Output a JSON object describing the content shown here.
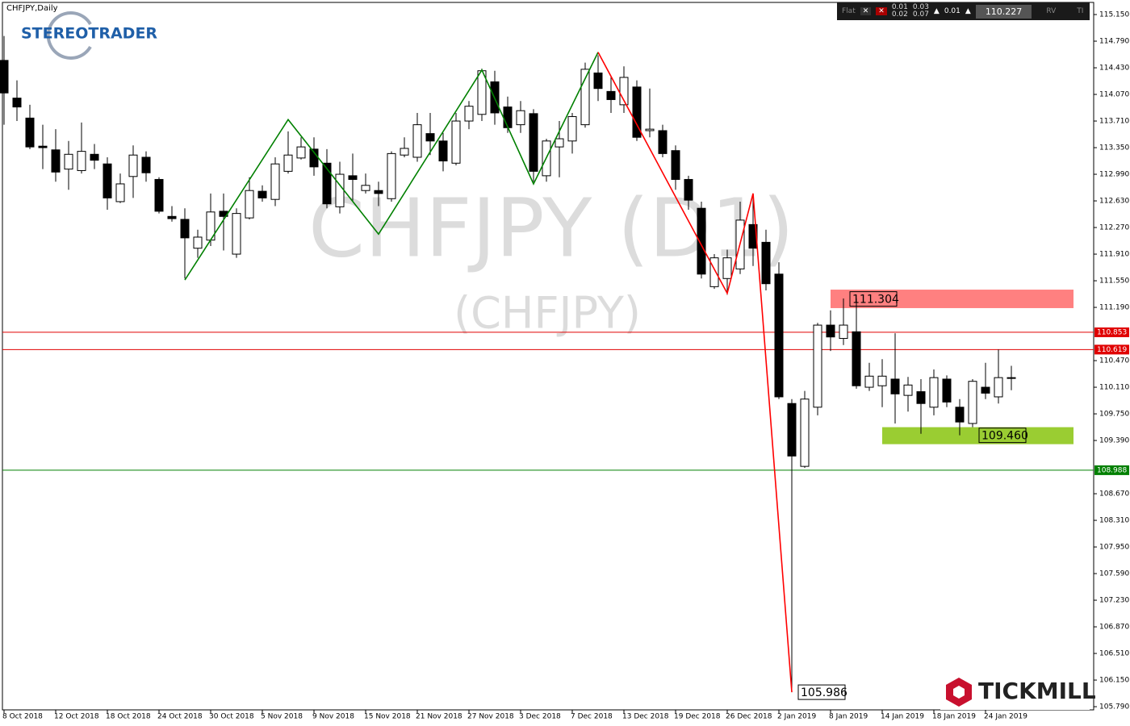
{
  "chart_data": {
    "type": "candlestick",
    "title": "CHFJPY,Daily",
    "watermark": "CHFJPY (D1)",
    "watermark_sub": "(CHFJPY)",
    "categories": [
      "8 Oct 2018",
      null,
      null,
      null,
      "12 Oct 2018",
      null,
      null,
      null,
      "18 Oct 2018",
      null,
      null,
      null,
      "24 Oct 2018",
      null,
      null,
      null,
      "30 Oct 2018",
      null,
      null,
      null,
      "5 Nov 2018",
      null,
      null,
      null,
      "9 Nov 2018",
      null,
      null,
      null,
      "15 Nov 2018",
      null,
      null,
      null,
      "21 Nov 2018",
      null,
      null,
      null,
      "27 Nov 2018",
      null,
      null,
      null,
      "3 Dec 2018",
      null,
      null,
      null,
      "7 Dec 2018",
      null,
      null,
      null,
      "13 Dec 2018",
      null,
      null,
      null,
      "19 Dec 2018",
      null,
      null,
      null,
      "26 Dec 2018",
      null,
      null,
      null,
      "2 Jan 2019",
      null,
      null,
      null,
      "8 Jan 2019",
      null,
      null,
      null,
      "14 Jan 2019",
      null,
      null,
      null,
      "18 Jan 2019",
      null,
      null,
      null,
      "24 Jan 2019",
      null,
      null
    ],
    "open": [
      114.53,
      114.02,
      113.75,
      113.37,
      113.32,
      113.06,
      113.04,
      113.26,
      113.13,
      112.62,
      112.96,
      113.22,
      112.92,
      112.42,
      112.38,
      111.99,
      112.1,
      112.49,
      111.91,
      112.4,
      112.76,
      112.65,
      113.03,
      113.21,
      113.33,
      113.14,
      112.55,
      112.97,
      112.77,
      112.77,
      112.66,
      113.25,
      113.22,
      113.54,
      113.44,
      113.14,
      113.71,
      113.8,
      114.24,
      113.9,
      113.66,
      113.81,
      112.97,
      113.36,
      113.44,
      113.66,
      114.36,
      114.11,
      113.93,
      114.17,
      113.58,
      113.58,
      113.31,
      112.92,
      112.53,
      111.47,
      111.58,
      111.71,
      112.31,
      112.07,
      111.64,
      109.89,
      109.04,
      109.84,
      110.95,
      110.77,
      110.86,
      110.11,
      110.13,
      110.22,
      110.0,
      110.05,
      109.84,
      110.22,
      109.84,
      109.62,
      110.11,
      109.98,
      110.24
    ],
    "high": [
      114.86,
      114.26,
      113.93,
      113.66,
      113.6,
      113.44,
      113.69,
      113.4,
      113.22,
      113.0,
      113.38,
      113.3,
      112.95,
      112.56,
      112.53,
      112.24,
      112.73,
      112.73,
      112.53,
      112.95,
      112.84,
      113.22,
      113.57,
      113.49,
      113.49,
      113.33,
      113.16,
      113.27,
      113.0,
      112.89,
      113.3,
      113.49,
      113.82,
      113.82,
      113.55,
      113.82,
      113.98,
      114.42,
      114.39,
      114.04,
      113.98,
      113.87,
      113.47,
      113.71,
      113.82,
      114.5,
      114.6,
      114.31,
      114.45,
      114.26,
      114.15,
      113.66,
      113.38,
      112.97,
      112.62,
      111.91,
      111.97,
      112.62,
      112.73,
      112.24,
      111.8,
      109.95,
      110.06,
      110.98,
      111.15,
      111.31,
      111.31,
      110.44,
      110.49,
      110.84,
      110.25,
      110.22,
      110.35,
      110.27,
      109.95,
      110.22,
      110.44,
      110.62,
      110.4
    ],
    "low": [
      113.66,
      113.71,
      113.33,
      113.06,
      112.89,
      112.78,
      113.0,
      113.06,
      112.51,
      112.6,
      112.67,
      112.89,
      112.46,
      112.35,
      111.58,
      111.86,
      112.02,
      111.96,
      111.86,
      112.38,
      112.62,
      112.56,
      113.0,
      113.19,
      112.97,
      112.53,
      112.46,
      112.62,
      112.73,
      112.56,
      112.62,
      113.22,
      113.16,
      113.25,
      113.03,
      113.11,
      113.6,
      113.71,
      113.66,
      113.55,
      113.55,
      112.89,
      112.89,
      112.95,
      113.27,
      113.62,
      113.98,
      113.82,
      113.82,
      113.44,
      113.49,
      113.22,
      112.78,
      112.51,
      111.58,
      111.44,
      111.36,
      111.64,
      111.75,
      111.42,
      109.95,
      105.986,
      109.02,
      109.73,
      110.6,
      110.68,
      110.09,
      110.06,
      109.84,
      109.62,
      109.78,
      109.48,
      109.73,
      109.84,
      109.46,
      109.57,
      109.95,
      109.89,
      110.07
    ],
    "close": [
      114.09,
      113.9,
      113.36,
      113.35,
      113.02,
      113.26,
      113.3,
      113.18,
      112.67,
      112.86,
      113.25,
      113.01,
      112.49,
      112.39,
      112.13,
      112.14,
      112.48,
      112.42,
      112.46,
      112.77,
      112.67,
      113.13,
      113.25,
      113.36,
      113.09,
      112.59,
      112.99,
      112.92,
      112.84,
      112.73,
      113.27,
      113.34,
      113.66,
      113.44,
      113.17,
      113.71,
      113.91,
      114.39,
      113.82,
      113.62,
      113.85,
      113.03,
      113.44,
      113.47,
      113.77,
      114.41,
      114.15,
      114.0,
      114.3,
      113.49,
      113.6,
      113.27,
      112.92,
      112.64,
      111.64,
      111.86,
      111.86,
      112.37,
      111.99,
      111.51,
      109.98,
      109.18,
      109.95,
      110.95,
      110.79,
      110.95,
      110.13,
      110.26,
      110.26,
      110.02,
      110.14,
      109.89,
      110.24,
      109.91,
      109.64,
      110.19,
      110.03,
      110.24,
      110.23
    ],
    "up_color": "#ffffff",
    "down_color": "#000000",
    "ylim": [
      105.747,
      115.314
    ],
    "yticks": [
      {
        "value": 115.15,
        "label": "115.150"
      },
      {
        "value": 114.79,
        "label": "114.790"
      },
      {
        "value": 114.43,
        "label": "114.430"
      },
      {
        "value": 114.07,
        "label": "114.070"
      },
      {
        "value": 113.71,
        "label": "113.710"
      },
      {
        "value": 113.35,
        "label": "113.350"
      },
      {
        "value": 112.99,
        "label": "112.990"
      },
      {
        "value": 112.63,
        "label": "112.630"
      },
      {
        "value": 112.27,
        "label": "112.270"
      },
      {
        "value": 111.91,
        "label": "111.910"
      },
      {
        "value": 111.55,
        "label": "111.550"
      },
      {
        "value": 111.19,
        "label": "111.190"
      },
      {
        "value": 110.47,
        "label": "110.470"
      },
      {
        "value": 110.11,
        "label": "110.110"
      },
      {
        "value": 109.75,
        "label": "109.750"
      },
      {
        "value": 109.39,
        "label": "109.390"
      },
      {
        "value": 108.67,
        "label": "108.670"
      },
      {
        "value": 108.31,
        "label": "108.310"
      },
      {
        "value": 107.95,
        "label": "107.950"
      },
      {
        "value": 107.59,
        "label": "107.590"
      },
      {
        "value": 107.23,
        "label": "107.230"
      },
      {
        "value": 106.87,
        "label": "106.870"
      },
      {
        "value": 106.51,
        "label": "106.510"
      },
      {
        "value": 106.15,
        "label": "106.150"
      },
      {
        "value": 105.79,
        "label": "105.790"
      }
    ],
    "levels": [
      {
        "value": 110.853,
        "color": "#e00000"
      },
      {
        "value": 110.619,
        "color": "#e00000"
      },
      {
        "value": 108.988,
        "color": "#008000"
      }
    ],
    "zones": [
      {
        "from": 111.43,
        "to": 111.18,
        "start": 64,
        "color": "#ff8080"
      },
      {
        "from": 109.57,
        "to": 109.34,
        "start": 68,
        "color": "#9acd32"
      }
    ],
    "zigzag": [
      {
        "color": "#008000",
        "x": [
          14,
          22,
          29,
          37,
          41,
          46
        ],
        "values": [
          111.56,
          113.73,
          112.18,
          114.4,
          112.86,
          114.64
        ]
      },
      {
        "color": "#ff0000",
        "x": [
          46,
          56,
          58,
          61
        ],
        "values": [
          114.64,
          111.38,
          112.73,
          105.986
        ]
      }
    ],
    "annotations": [
      {
        "value": 111.304,
        "label": "111.304",
        "at": 65
      },
      {
        "value": 109.46,
        "label": "109.460",
        "at": 75
      },
      {
        "value": 105.986,
        "label": "105.986",
        "at": 61
      }
    ]
  },
  "toolbar": {
    "mode": "Flat",
    "lot1": "0.01",
    "lot2": "0.03",
    "lot3": "0.02",
    "lot4": "0.07",
    "lot5": "0.01",
    "price": "110.227",
    "rv": "RV",
    "ti": "TI"
  },
  "logos": {
    "stereo": "STEREOTRADER",
    "tickmill": "TICKMILL"
  }
}
